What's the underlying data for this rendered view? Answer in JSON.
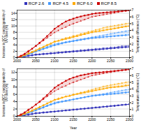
{
  "chart_data": [
    {
      "type": "line",
      "ylabel": "Increase in SCC carcinogenicity of\nUV dose (%)",
      "y2label": "Temperature difference (°C)",
      "x": [
        2000,
        2010,
        2020,
        2030,
        2040,
        2050,
        2060,
        2070,
        2080,
        2090,
        2100,
        2110,
        2120,
        2130,
        2140,
        2150,
        2160,
        2170,
        2180,
        2190,
        2200,
        2210,
        2220,
        2230,
        2240,
        2250,
        2260,
        2270,
        2280,
        2290,
        2300
      ],
      "xlim": [
        2000,
        2300
      ],
      "xticks": [
        2000,
        2050,
        2100,
        2150,
        2200,
        2250,
        2300
      ],
      "ylim": [
        0,
        15
      ],
      "yticks": [
        0,
        2,
        4,
        6,
        8,
        10,
        12,
        14
      ],
      "y2lim": [
        0,
        7
      ],
      "y2ticks": [
        0,
        1,
        2,
        3,
        4,
        5,
        6,
        7
      ],
      "grid": true,
      "legend": "top",
      "series": [
        {
          "name": "RCP 2.6",
          "color": "#3333bb",
          "marker": "square",
          "line_style": "solid",
          "values": [
            0,
            0.1,
            0.3,
            0.5,
            0.7,
            0.9,
            1.0,
            1.1,
            1.2,
            1.3,
            1.4,
            1.5,
            1.6,
            1.7,
            1.8,
            1.9,
            2.0,
            2.1,
            2.2,
            2.3,
            2.4,
            2.5,
            2.6,
            2.7,
            2.8,
            2.9,
            3.0,
            3.1,
            3.2,
            3.3,
            3.4
          ]
        },
        {
          "name": "RCP 4.5",
          "color": "#4499ff",
          "marker": "square",
          "line_style": "solid",
          "values": [
            0,
            0.2,
            0.6,
            1.0,
            1.4,
            1.9,
            2.3,
            2.7,
            3.1,
            3.5,
            3.9,
            4.2,
            4.5,
            4.8,
            5.0,
            5.2,
            5.4,
            5.6,
            5.8,
            6.0,
            6.2,
            6.3,
            6.4,
            6.5,
            6.6,
            6.7,
            6.8,
            6.9,
            7.0,
            7.1,
            7.2
          ]
        },
        {
          "name": "RCP 6.0",
          "color": "#ffaa00",
          "marker": "triangle",
          "line_style": "solid",
          "values": [
            0,
            0.3,
            0.7,
            1.2,
            1.7,
            2.2,
            2.8,
            3.3,
            3.9,
            4.4,
            5.0,
            5.3,
            5.6,
            5.9,
            6.2,
            6.5,
            6.8,
            7.1,
            7.4,
            7.7,
            8.0,
            8.2,
            8.4,
            8.6,
            8.8,
            9.0,
            9.2,
            9.4,
            9.6,
            9.8,
            10.0
          ]
        },
        {
          "name": "RCP 8.5",
          "color": "#cc0000",
          "marker": "square",
          "line_style": "solid",
          "values": [
            0,
            0.5,
            1.1,
            1.9,
            2.8,
            3.7,
            4.7,
            5.7,
            6.8,
            7.9,
            9.1,
            9.9,
            10.7,
            11.4,
            11.9,
            12.3,
            12.7,
            13.0,
            13.3,
            13.5,
            13.8,
            14.0,
            14.1,
            14.2,
            14.3,
            14.4,
            14.5,
            14.6,
            14.7,
            14.8,
            14.9
          ]
        },
        {
          "name": "RCP 2.6",
          "color": "#3333bb",
          "axis": "y2",
          "marker": "triangle",
          "line_style": "dashed",
          "values": [
            0,
            0.1,
            0.2,
            0.3,
            0.4,
            0.5,
            0.5,
            0.6,
            0.6,
            0.7,
            0.7,
            0.8,
            0.8,
            0.9,
            0.9,
            1.0,
            1.0,
            1.1,
            1.1,
            1.2,
            1.2,
            1.3,
            1.3,
            1.4,
            1.4,
            1.5,
            1.5,
            1.6,
            1.7,
            1.7,
            1.8
          ]
        },
        {
          "name": "RCP 4.5",
          "color": "#4499ff",
          "axis": "y2",
          "marker": "triangle",
          "line_style": "dashed",
          "values": [
            0,
            0.2,
            0.4,
            0.6,
            0.8,
            1.0,
            1.2,
            1.4,
            1.6,
            1.8,
            2.0,
            2.1,
            2.2,
            2.3,
            2.4,
            2.5,
            2.6,
            2.7,
            2.8,
            2.9,
            3.0,
            3.1,
            3.2,
            3.3,
            3.4,
            3.5,
            3.6,
            3.7,
            3.8,
            3.9,
            4.0
          ]
        },
        {
          "name": "RCP 6.0",
          "color": "#ffaa00",
          "axis": "y2",
          "marker": "triangle",
          "line_style": "dashed",
          "values": [
            0,
            0.2,
            0.4,
            0.6,
            0.9,
            1.1,
            1.4,
            1.6,
            1.9,
            2.1,
            2.4,
            2.5,
            2.7,
            2.9,
            3.0,
            3.2,
            3.3,
            3.5,
            3.6,
            3.8,
            3.9,
            4.1,
            4.2,
            4.4,
            4.5,
            4.6,
            4.7,
            4.8,
            4.9,
            5.0,
            5.1
          ]
        },
        {
          "name": "RCP 8.5",
          "color": "#cc0000",
          "axis": "y2",
          "marker": "triangle",
          "line_style": "dashed",
          "values": [
            0,
            0.3,
            0.6,
            1.0,
            1.3,
            1.7,
            2.1,
            2.5,
            2.9,
            3.3,
            3.7,
            4.0,
            4.3,
            4.5,
            4.8,
            5.0,
            5.2,
            5.4,
            5.6,
            5.8,
            6.0,
            6.1,
            6.2,
            6.3,
            6.4,
            6.5,
            6.6,
            6.7,
            6.8,
            6.9,
            7.0
          ]
        }
      ]
    },
    {
      "type": "line",
      "xlabel": "Year",
      "ylabel": "Increase in BCC carcinogenicity of\nUV dose (%)",
      "y2label": "Temperature difference (°C)",
      "x": [
        2000,
        2010,
        2020,
        2030,
        2040,
        2050,
        2060,
        2070,
        2080,
        2090,
        2100,
        2110,
        2120,
        2130,
        2140,
        2150,
        2160,
        2170,
        2180,
        2190,
        2200,
        2210,
        2220,
        2230,
        2240,
        2250,
        2260,
        2270,
        2280,
        2290,
        2300
      ],
      "xlim": [
        2000,
        2300
      ],
      "xticks": [
        2000,
        2050,
        2100,
        2150,
        2200,
        2250,
        2300
      ],
      "ylim": [
        0,
        13
      ],
      "yticks": [
        0,
        2,
        4,
        6,
        8,
        10,
        12
      ],
      "y2lim": [
        0,
        7
      ],
      "y2ticks": [
        0,
        1,
        2,
        3,
        4,
        5,
        6,
        7
      ],
      "grid": true,
      "series": [
        {
          "name": "RCP 2.6",
          "color": "#3333bb",
          "marker": "square",
          "line_style": "solid",
          "values": [
            0,
            0.1,
            0.3,
            0.4,
            0.6,
            0.8,
            0.9,
            1.0,
            1.1,
            1.2,
            1.3,
            1.4,
            1.5,
            1.6,
            1.7,
            1.8,
            1.9,
            2.0,
            2.1,
            2.2,
            2.3,
            2.4,
            2.5,
            2.6,
            2.7,
            2.8,
            2.9,
            3.0,
            3.1,
            3.2,
            3.3
          ]
        },
        {
          "name": "RCP 4.5",
          "color": "#4499ff",
          "marker": "square",
          "line_style": "solid",
          "values": [
            0,
            0.2,
            0.5,
            0.9,
            1.2,
            1.6,
            2.0,
            2.4,
            2.8,
            3.2,
            3.5,
            3.8,
            4.0,
            4.2,
            4.4,
            4.6,
            4.8,
            5.0,
            5.2,
            5.4,
            5.6,
            5.7,
            5.8,
            5.9,
            6.0,
            6.1,
            6.2,
            6.3,
            6.4,
            6.5,
            6.6
          ]
        },
        {
          "name": "RCP 6.0",
          "color": "#ffaa00",
          "marker": "triangle",
          "line_style": "solid",
          "values": [
            0,
            0.3,
            0.6,
            1.1,
            1.5,
            2.0,
            2.5,
            3.0,
            3.5,
            4.0,
            4.5,
            4.8,
            5.1,
            5.4,
            5.6,
            5.9,
            6.1,
            6.3,
            6.5,
            6.7,
            6.9,
            7.1,
            7.3,
            7.5,
            7.7,
            7.9,
            8.0,
            8.1,
            8.2,
            8.4,
            8.5
          ]
        },
        {
          "name": "RCP 8.5",
          "color": "#cc0000",
          "marker": "square",
          "line_style": "solid",
          "values": [
            0,
            0.4,
            1.0,
            1.7,
            2.4,
            3.2,
            4.0,
            4.9,
            5.8,
            6.8,
            7.8,
            8.5,
            9.1,
            9.7,
            10.2,
            10.6,
            10.9,
            11.2,
            11.4,
            11.6,
            11.8,
            11.9,
            12.0,
            12.1,
            12.2,
            12.3,
            12.4,
            12.5,
            12.6,
            12.7,
            12.8
          ]
        },
        {
          "name": "RCP 2.6",
          "color": "#3333bb",
          "axis": "y2",
          "marker": "triangle",
          "line_style": "dashed",
          "values": [
            0,
            0.1,
            0.2,
            0.3,
            0.4,
            0.5,
            0.5,
            0.6,
            0.6,
            0.7,
            0.7,
            0.8,
            0.8,
            0.9,
            0.9,
            1.0,
            1.0,
            1.1,
            1.1,
            1.2,
            1.2,
            1.3,
            1.3,
            1.4,
            1.4,
            1.5,
            1.5,
            1.6,
            1.7,
            1.7,
            1.8
          ]
        },
        {
          "name": "RCP 4.5",
          "color": "#4499ff",
          "axis": "y2",
          "marker": "triangle",
          "line_style": "dashed",
          "values": [
            0,
            0.2,
            0.4,
            0.6,
            0.8,
            1.0,
            1.2,
            1.4,
            1.6,
            1.8,
            2.0,
            2.1,
            2.2,
            2.3,
            2.4,
            2.5,
            2.6,
            2.7,
            2.8,
            2.9,
            3.0,
            3.1,
            3.2,
            3.3,
            3.4,
            3.5,
            3.6,
            3.7,
            3.8,
            3.9,
            4.0
          ]
        },
        {
          "name": "RCP 6.0",
          "color": "#ffaa00",
          "axis": "y2",
          "marker": "triangle",
          "line_style": "dashed",
          "values": [
            0,
            0.2,
            0.4,
            0.6,
            0.9,
            1.1,
            1.4,
            1.6,
            1.9,
            2.1,
            2.4,
            2.5,
            2.7,
            2.9,
            3.0,
            3.2,
            3.3,
            3.5,
            3.6,
            3.8,
            3.9,
            4.1,
            4.2,
            4.4,
            4.5,
            4.6,
            4.7,
            4.8,
            4.9,
            5.0,
            5.1
          ]
        },
        {
          "name": "RCP 8.5",
          "color": "#cc0000",
          "axis": "y2",
          "marker": "triangle",
          "line_style": "dashed",
          "values": [
            0,
            0.3,
            0.6,
            1.0,
            1.3,
            1.7,
            2.1,
            2.5,
            2.9,
            3.3,
            3.7,
            4.0,
            4.3,
            4.5,
            4.8,
            5.0,
            5.2,
            5.4,
            5.6,
            5.8,
            6.0,
            6.1,
            6.2,
            6.3,
            6.4,
            6.5,
            6.6,
            6.7,
            6.8,
            6.9,
            7.0
          ]
        }
      ]
    }
  ]
}
